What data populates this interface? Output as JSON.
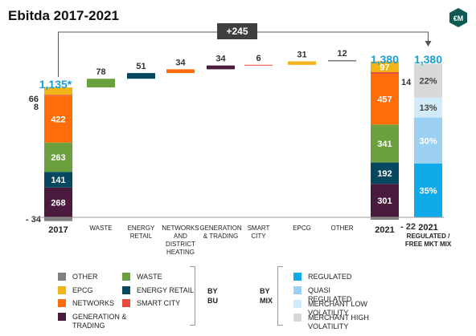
{
  "title": "Ebitda 2017-2021",
  "logo_text": "€M",
  "colors": {
    "OTHER": "#7f7f7f",
    "EPCG": "#f2b417",
    "NETWORKS": "#ff6d0b",
    "GENERATION & TRADING": "#4b1a3f",
    "WASTE": "#6aa13e",
    "ENERGY RETAIL": "#06485f",
    "SMART CITY": "#e84c3d",
    "REGULATED": "#0eaaea",
    "QUASI REGULATED": "#9bd0f3",
    "MERCHANT LOW VOLATILITY": "#d2ebfa",
    "MERCHANT HIGH VOLATILITY": "#d8d8d8",
    "total_label": "#1a9ed9"
  },
  "legend": {
    "by_bu_label": "BY\nBU",
    "by_mix_label": "BY\nMIX",
    "bu_col1": [
      {
        "label": "OTHER",
        "color": "#7f7f7f"
      },
      {
        "label": "EPCG",
        "color": "#f2b417"
      },
      {
        "label": "NETWORKS",
        "color": "#ff6d0b"
      },
      {
        "label": "GENERATION & TRADING",
        "color": "#4b1a3f"
      }
    ],
    "bu_col2": [
      {
        "label": "WASTE",
        "color": "#6aa13e"
      },
      {
        "label": "ENERGY RETAIL",
        "color": "#06485f"
      },
      {
        "label": "SMART CITY",
        "color": "#e84c3d"
      }
    ],
    "mix": [
      {
        "label": "REGULATED",
        "color": "#0eaaea"
      },
      {
        "label": "QUASI REGULATED",
        "color": "#9bd0f3"
      },
      {
        "label": "MERCHANT LOW VOLATILITY",
        "color": "#d2ebfa"
      },
      {
        "label": "MERCHANT HIGH VOLATILITY",
        "color": "#d8d8d8"
      }
    ]
  },
  "chart_data": {
    "type": "bar",
    "subtype": "waterfall",
    "title": "Ebitda 2017-2021",
    "unit": "€M",
    "increase_label": "+245",
    "categories": [
      "2017",
      "WASTE",
      "ENERGY RETAIL",
      "NETWORKS AND DISTRICT HEATING",
      "GENERATION & TRADING",
      "SMART CITY",
      "EPCG",
      "OTHER",
      "2021",
      "2021 REGULATED / FREE MKT MIX"
    ],
    "start": {
      "category": "2017",
      "total_label": "1,135*",
      "segments": [
        {
          "name": "GENERATION & TRADING",
          "value": 268,
          "label": "268"
        },
        {
          "name": "ENERGY RETAIL",
          "value": 141,
          "label": "141"
        },
        {
          "name": "WASTE",
          "value": 263,
          "label": "263"
        },
        {
          "name": "NETWORKS",
          "value": 422,
          "label": "422"
        },
        {
          "name": "SMART CITY",
          "value": 8,
          "label": "8"
        },
        {
          "name": "EPCG",
          "value": 66,
          "label": "66"
        }
      ],
      "negative": {
        "name": "OTHER",
        "value": -34,
        "label": "- 34"
      }
    },
    "steps": [
      {
        "category": "WASTE",
        "name": "WASTE",
        "value": 78,
        "label": "78"
      },
      {
        "category": "ENERGY RETAIL",
        "name": "ENERGY RETAIL",
        "value": 51,
        "label": "51"
      },
      {
        "category": "NETWORKS AND DISTRICT HEATING",
        "name": "NETWORKS",
        "value": 34,
        "label": "34"
      },
      {
        "category": "GENERATION & TRADING",
        "name": "GENERATION & TRADING",
        "value": 34,
        "label": "34"
      },
      {
        "category": "SMART CITY",
        "name": "SMART CITY",
        "value": 6,
        "label": "6"
      },
      {
        "category": "EPCG",
        "name": "EPCG",
        "value": 31,
        "label": "31"
      },
      {
        "category": "OTHER",
        "name": "OTHER",
        "value": 12,
        "label": "12"
      }
    ],
    "end": {
      "category": "2021",
      "total_label": "1,380",
      "segments": [
        {
          "name": "GENERATION & TRADING",
          "value": 301,
          "label": "301"
        },
        {
          "name": "ENERGY RETAIL",
          "value": 192,
          "label": "192"
        },
        {
          "name": "WASTE",
          "value": 341,
          "label": "341"
        },
        {
          "name": "NETWORKS",
          "value": 457,
          "label": "457"
        },
        {
          "name": "SMART CITY",
          "value": 14,
          "label": "14"
        },
        {
          "name": "EPCG",
          "value": 97,
          "label": "97"
        }
      ],
      "negative": {
        "name": "OTHER",
        "value": -22,
        "label": "- 22"
      }
    },
    "mix": {
      "category": "2021 REGULATED / FREE MKT MIX",
      "total_label": "1,380",
      "total": 1380,
      "segments": [
        {
          "name": "REGULATED",
          "percent": 35,
          "label": "35%"
        },
        {
          "name": "QUASI REGULATED",
          "percent": 30,
          "label": "30%"
        },
        {
          "name": "MERCHANT LOW VOLATILITY",
          "percent": 13,
          "label": "13%"
        },
        {
          "name": "MERCHANT HIGH VOLATILITY",
          "percent": 22,
          "label": "22%"
        }
      ]
    },
    "category_labels": [
      "2017",
      "WASTE",
      "ENERGY\nRETAIL",
      "NETWORKS\nAND\nDISTRICT\nHEATING",
      "GENERATION\n& TRADING",
      "SMART\nCITY",
      "EPCG",
      "OTHER",
      "2021",
      "2021\nREGULATED /\nFREE MKT MIX"
    ]
  }
}
